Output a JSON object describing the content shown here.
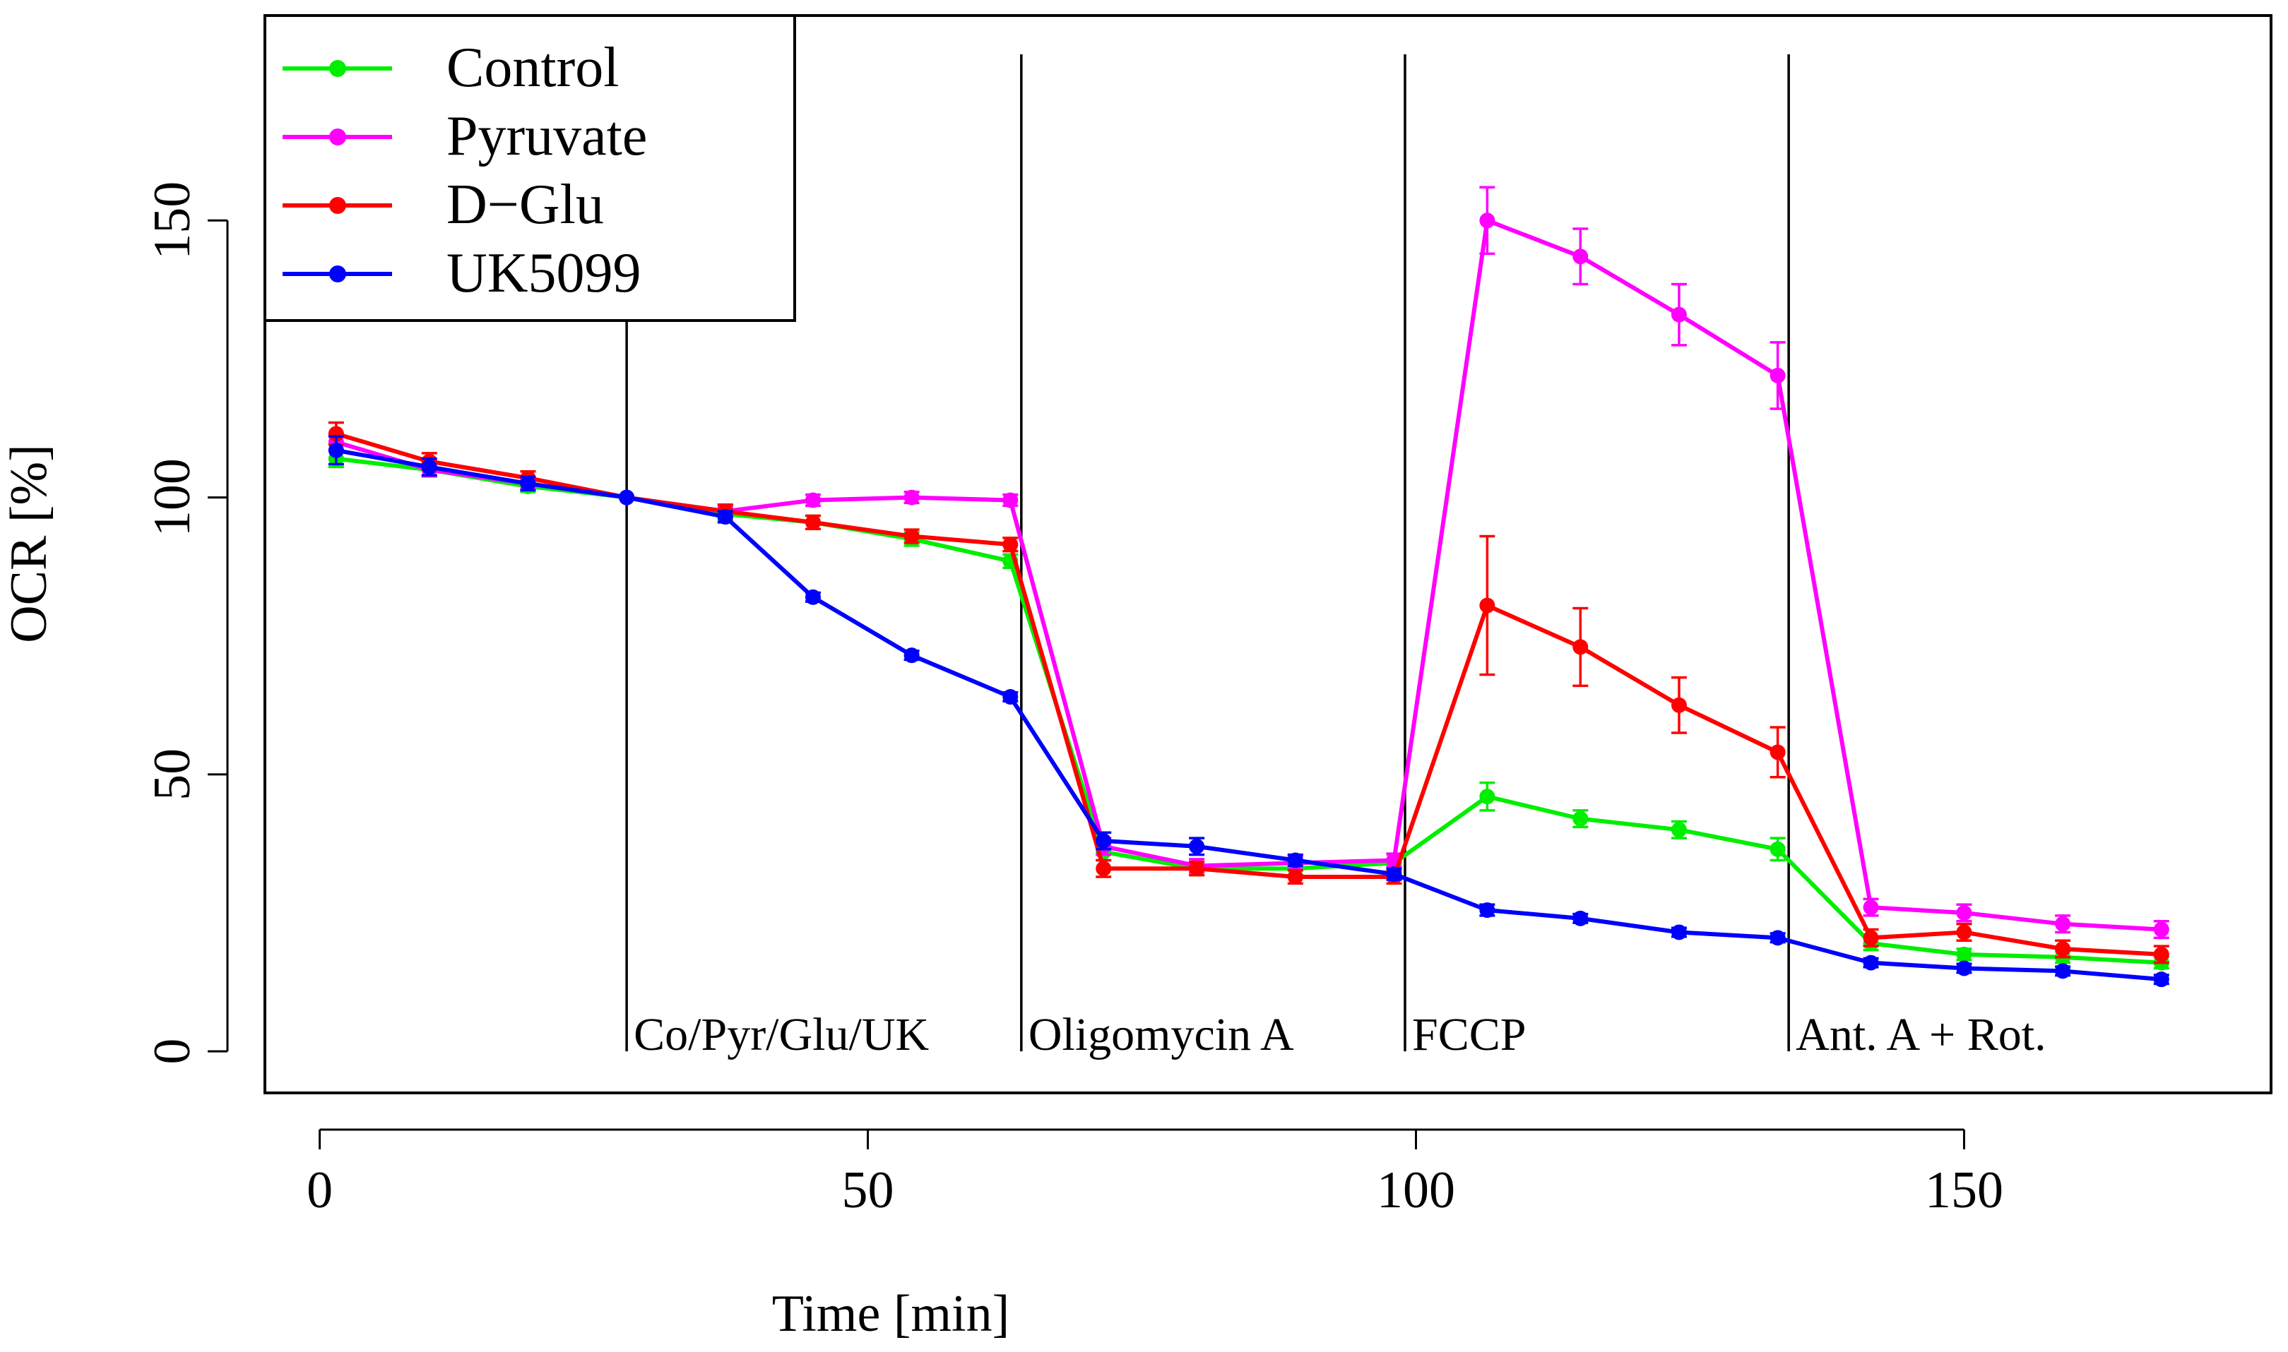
{
  "chart_data": {
    "type": "line",
    "title": "",
    "xlabel": "Time [min]",
    "ylabel": "OCR [%]",
    "xlim": [
      -5,
      178
    ],
    "ylim": [
      -7.5,
      187
    ],
    "x_ticks": [
      0,
      50,
      100,
      150
    ],
    "y_ticks": [
      0,
      50,
      100,
      150
    ],
    "grid": false,
    "legend_position": "top-left",
    "x": [
      1.5,
      10,
      19,
      28,
      37,
      45,
      54,
      63,
      71.5,
      80,
      89,
      98,
      106.5,
      115,
      124,
      133,
      141.5,
      150,
      159,
      168
    ],
    "series": [
      {
        "name": "Control",
        "color": "#00ee00",
        "values": [
          107,
          105,
          102,
          100,
          97,
          95.5,
          92.5,
          88.5,
          36,
          33,
          33,
          34,
          46,
          42,
          40,
          36.5,
          19.5,
          17.5,
          17,
          16
        ],
        "errors": [
          1.5,
          1.2,
          1,
          0,
          1.2,
          1.2,
          1.2,
          1.2,
          1.5,
          1.2,
          1.2,
          1.5,
          2.5,
          1.5,
          1.5,
          2,
          1.2,
          1,
          1,
          1
        ]
      },
      {
        "name": "Pyruvate",
        "color": "#ff00ff",
        "values": [
          110,
          105,
          102.5,
          100,
          97.5,
          99.5,
          100,
          99.5,
          37,
          33.5,
          34,
          34.5,
          150,
          143.5,
          133,
          122,
          26,
          25,
          23,
          22
        ],
        "errors": [
          1.5,
          1.2,
          1,
          0,
          1,
          1,
          1,
          1,
          1.5,
          1.2,
          1.2,
          1.2,
          6,
          5,
          5.5,
          6,
          1.5,
          1.5,
          1.5,
          1.5
        ]
      },
      {
        "name": "D−Glu",
        "color": "#ff0000",
        "values": [
          111.5,
          106.5,
          103.5,
          100,
          97.5,
          95.5,
          93,
          91.5,
          33,
          33,
          31.5,
          31.5,
          80.5,
          73,
          62.5,
          54,
          20.5,
          21.5,
          18.5,
          17.5
        ],
        "errors": [
          2,
          1.5,
          1.2,
          0,
          1.2,
          1.2,
          1.2,
          1.2,
          1.5,
          1.2,
          1.2,
          1.2,
          12.5,
          7,
          5,
          4.5,
          1.5,
          1.5,
          1.5,
          1.5
        ]
      },
      {
        "name": "UK5099",
        "color": "#0000ff",
        "values": [
          108.5,
          105.5,
          102.5,
          100,
          96.5,
          82,
          71.5,
          64,
          38,
          37,
          34.5,
          32,
          25.5,
          24,
          21.5,
          20.5,
          16,
          15,
          14.5,
          13
        ],
        "errors": [
          2.5,
          1.5,
          1.2,
          0,
          1,
          0.8,
          0.8,
          0.8,
          1.5,
          1.5,
          1,
          1,
          1,
          0.8,
          0.8,
          0.8,
          0.8,
          0.8,
          0.8,
          0.8
        ]
      }
    ],
    "annotations": [
      {
        "x": 28,
        "label": "Co/Pyr/Glu/UK"
      },
      {
        "x": 64,
        "label": "Oligomycin A"
      },
      {
        "x": 99,
        "label": "FCCP"
      },
      {
        "x": 134,
        "label": "Ant. A + Rot."
      }
    ]
  }
}
